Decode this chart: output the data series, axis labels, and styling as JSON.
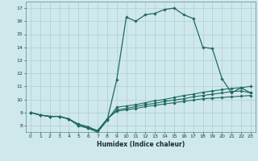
{
  "xlabel": "Humidex (Indice chaleur)",
  "xlim": [
    -0.5,
    23.5
  ],
  "ylim": [
    7.5,
    17.5
  ],
  "xticks": [
    0,
    1,
    2,
    3,
    4,
    5,
    6,
    7,
    8,
    9,
    10,
    11,
    12,
    13,
    14,
    15,
    16,
    17,
    18,
    19,
    20,
    21,
    22,
    23
  ],
  "yticks": [
    8,
    9,
    10,
    11,
    12,
    13,
    14,
    15,
    16,
    17
  ],
  "bg_color": "#cfe8ec",
  "grid_color": "#aecdd4",
  "line_color": "#1e6b5e",
  "line1": [
    9.0,
    8.8,
    8.7,
    8.7,
    8.5,
    8.0,
    7.8,
    7.5,
    8.4,
    11.5,
    16.3,
    16.0,
    16.5,
    16.6,
    16.9,
    17.0,
    16.5,
    16.2,
    14.0,
    13.9,
    11.6,
    10.5,
    10.9,
    10.5
  ],
  "line2": [
    9.0,
    8.8,
    8.7,
    8.7,
    8.5,
    8.0,
    7.8,
    7.5,
    8.4,
    9.4,
    9.5,
    9.6,
    9.75,
    9.9,
    10.0,
    10.15,
    10.3,
    10.4,
    10.55,
    10.65,
    10.75,
    10.85,
    10.9,
    11.0
  ],
  "line3": [
    9.0,
    8.8,
    8.7,
    8.7,
    8.5,
    8.1,
    7.9,
    7.6,
    8.5,
    9.2,
    9.3,
    9.45,
    9.6,
    9.7,
    9.85,
    9.95,
    10.05,
    10.2,
    10.3,
    10.4,
    10.5,
    10.6,
    10.65,
    10.5
  ],
  "line4": [
    9.0,
    8.8,
    8.7,
    8.7,
    8.5,
    8.1,
    7.9,
    7.6,
    8.5,
    9.1,
    9.2,
    9.3,
    9.45,
    9.55,
    9.65,
    9.75,
    9.85,
    9.95,
    10.05,
    10.1,
    10.15,
    10.2,
    10.25,
    10.3
  ]
}
